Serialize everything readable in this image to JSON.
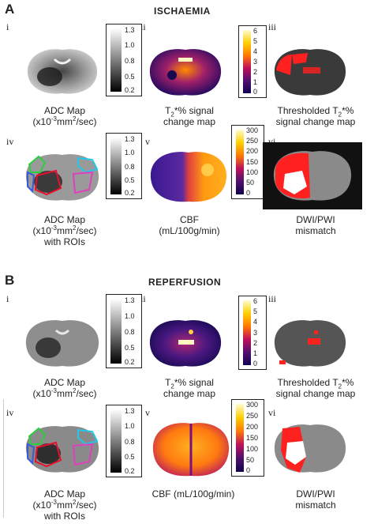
{
  "section_a": {
    "letter": "A",
    "title": "ISCHAEMIA",
    "panels": {
      "i": {
        "numeral": "i",
        "caption_line1": "ADC Map",
        "caption_line2_pre": "(x10",
        "caption_line2_sup": "-3",
        "caption_line2_mid": "mm",
        "caption_line2_sup2": "2",
        "caption_line2_post": "/sec)"
      },
      "ii": {
        "numeral": "ii",
        "caption_line1_pre": "T",
        "caption_line1_sub": "2",
        "caption_line1_post": "*% signal",
        "caption_line2": "change map"
      },
      "iii": {
        "numeral": "iii",
        "caption_line1_pre": "Thresholded T",
        "caption_line1_sub": "2",
        "caption_line1_post": "*%",
        "caption_line2": "signal change map"
      },
      "iv": {
        "numeral": "iv",
        "caption_line1": "ADC Map",
        "caption_line2_pre": "(x10",
        "caption_line2_sup": "-3",
        "caption_line2_mid": "mm",
        "caption_line2_sup2": "2",
        "caption_line2_post": "/sec)",
        "caption_line3": "with ROIs"
      },
      "v": {
        "numeral": "v",
        "caption_line1": "CBF",
        "caption_line2": "(mL/100g/min)"
      },
      "vi": {
        "numeral": "vi",
        "caption_line1": "DWI/PWI",
        "caption_line2": "mismatch"
      }
    },
    "colorbars": {
      "adc_top": [
        "1.3",
        "1.0",
        "0.8",
        "0.5",
        "0.2"
      ],
      "t2_top": [
        "6",
        "5",
        "4",
        "3",
        "2",
        "1",
        "0"
      ],
      "adc_mid": [
        "1.3",
        "1.0",
        "0.8",
        "0.5",
        "0.2"
      ],
      "cbf": [
        "300",
        "250",
        "200",
        "150",
        "100",
        "50",
        "0"
      ]
    }
  },
  "section_b": {
    "letter": "B",
    "title": "REPERFUSION",
    "panels": {
      "i": {
        "numeral": "i",
        "caption_line1": "ADC Map",
        "caption_line2_pre": "(x10",
        "caption_line2_sup": "-3",
        "caption_line2_mid": "mm",
        "caption_line2_sup2": "2",
        "caption_line2_post": "/sec)"
      },
      "ii": {
        "numeral": "ii",
        "caption_line1_pre": "T",
        "caption_line1_sub": "2",
        "caption_line1_post": "*% signal",
        "caption_line2": "change map"
      },
      "iii": {
        "numeral": "iii",
        "caption_line1_pre": "Thresholded T",
        "caption_line1_sub": "2",
        "caption_line1_post": "*%",
        "caption_line2": "signal change map"
      },
      "iv": {
        "numeral": "iv",
        "caption_line1": "ADC Map",
        "caption_line2_pre": "(x10",
        "caption_line2_sup": "-3",
        "caption_line2_mid": "mm",
        "caption_line2_sup2": "2",
        "caption_line2_post": "/sec)",
        "caption_line3": "with ROIs"
      },
      "v": {
        "numeral": "v",
        "caption_line1": "CBF  (mL/100g/min)"
      },
      "vi": {
        "numeral": "vi",
        "caption_line1": "DWI/PWI",
        "caption_line2": "mismatch"
      }
    },
    "colorbars": {
      "adc_top": [
        "1.3",
        "1.0",
        "0.8",
        "0.5",
        "0.2"
      ],
      "t2_top": [
        "6",
        "5",
        "4",
        "3",
        "2",
        "1",
        "0"
      ],
      "adc_mid": [
        "1.3",
        "1.0",
        "0.8",
        "0.5",
        "0.2"
      ],
      "cbf": [
        "300",
        "250",
        "200",
        "150",
        "100",
        "50",
        "0"
      ]
    }
  },
  "colors": {
    "hot_top": "#fffbd0",
    "hot_mid": "#ff7a00",
    "hot_low": "#b0006a",
    "hot_bottom": "#120050",
    "roi_green": "#2ecc40",
    "roi_cyan": "#22c8e8",
    "roi_red": "#e8102a",
    "roi_pink": "#e040c0",
    "roi_blue": "#3a5ad8",
    "threshold_red": "#ff2020"
  }
}
